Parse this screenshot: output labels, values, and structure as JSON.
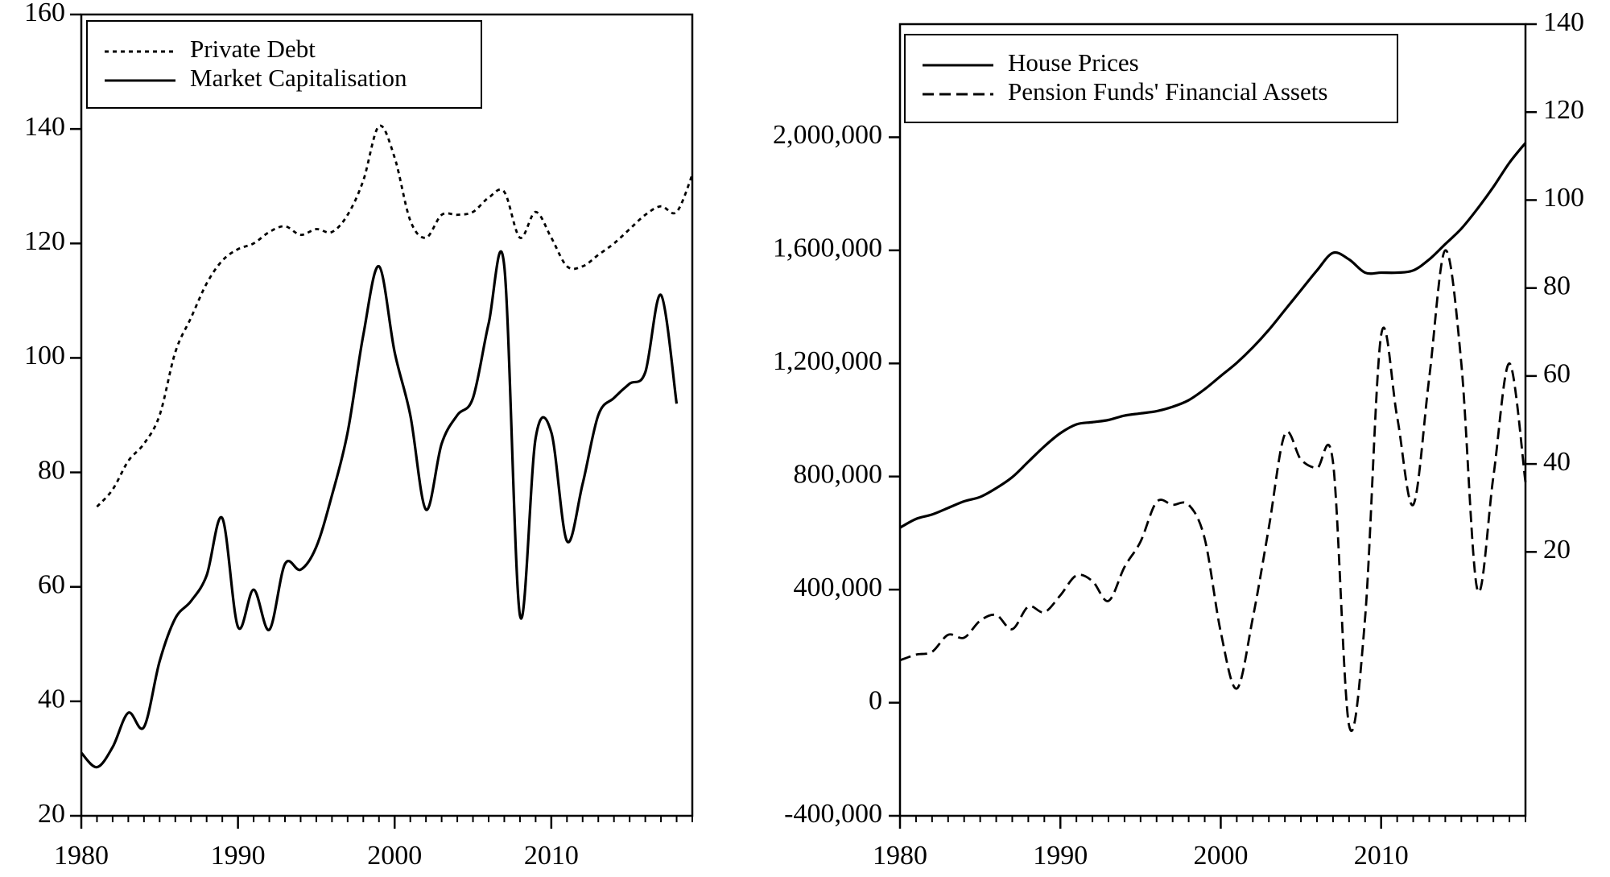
{
  "chart_data": [
    {
      "type": "line",
      "title": "",
      "xlabel": "",
      "ylabel": "",
      "xlim": [
        1980,
        2019
      ],
      "ylim": [
        20,
        160
      ],
      "x_ticks": [
        1980,
        1990,
        2000,
        2010
      ],
      "y_ticks": [
        20,
        40,
        60,
        80,
        100,
        120,
        140,
        160
      ],
      "x_tick_labels": [
        "1980",
        "1990",
        "2000",
        "2010"
      ],
      "y_tick_labels": [
        "20",
        "40",
        "60",
        "80",
        "100",
        "120",
        "140",
        "160"
      ],
      "legend_position": "top-left",
      "grid": false,
      "series": [
        {
          "name": "Private Debt",
          "style": "dotted",
          "x": [
            1981,
            1982,
            1983,
            1984,
            1985,
            1986,
            1987,
            1988,
            1989,
            1990,
            1991,
            1992,
            1993,
            1994,
            1995,
            1996,
            1997,
            1998,
            1999,
            2000,
            2001,
            2002,
            2003,
            2004,
            2005,
            2006,
            2007,
            2008,
            2009,
            2010,
            2011,
            2012,
            2013,
            2014,
            2015,
            2016,
            2017,
            2018,
            2019
          ],
          "values": [
            74,
            77,
            82,
            85,
            90,
            101,
            107,
            113,
            117,
            119,
            120,
            122,
            123,
            121.5,
            122.5,
            122,
            125,
            131,
            140.5,
            135,
            124,
            121,
            125,
            125,
            125.5,
            128,
            129,
            121,
            125.5,
            121,
            116,
            116,
            118,
            120,
            122.5,
            125,
            126.5,
            125.5,
            132
          ]
        },
        {
          "name": "Market Capitalisation",
          "style": "solid",
          "x": [
            1980,
            1981,
            1982,
            1983,
            1984,
            1985,
            1986,
            1987,
            1988,
            1989,
            1990,
            1991,
            1992,
            1993,
            1994,
            1995,
            1996,
            1997,
            1998,
            1999,
            2000,
            2001,
            2002,
            2003,
            2004,
            2005,
            2006,
            2007,
            2008,
            2009,
            2010,
            2011,
            2012,
            2013,
            2014,
            2015,
            2016,
            2017,
            2018
          ],
          "values": [
            31,
            28.5,
            32,
            38,
            35.5,
            47,
            54.5,
            57.5,
            62,
            72,
            53,
            59.5,
            52.5,
            64,
            63,
            67,
            76,
            87,
            104,
            116,
            101,
            90,
            73.5,
            85,
            90,
            93,
            106,
            116,
            55,
            86,
            87,
            68,
            78,
            90,
            93,
            95.5,
            97.5,
            111,
            92
          ]
        }
      ]
    },
    {
      "type": "line",
      "title": "",
      "xlabel": "",
      "ylabel": "",
      "xlim": [
        1980,
        2019
      ],
      "ylim_left": [
        -400000,
        2400000
      ],
      "ylim_right": [
        -40,
        140
      ],
      "x_ticks": [
        1980,
        1990,
        2000,
        2010
      ],
      "x_tick_labels": [
        "1980",
        "1990",
        "2000",
        "2010"
      ],
      "y_ticks_left": [
        -400000,
        0,
        400000,
        800000,
        1200000,
        1600000,
        2000000
      ],
      "y_tick_labels_left": [
        "-400,000",
        "0",
        "400,000",
        "800,000",
        "1,200,000",
        "1,600,000",
        "2,000,000"
      ],
      "y_ticks_right": [
        20,
        40,
        60,
        80,
        100,
        120,
        140
      ],
      "y_tick_labels_right": [
        "20",
        "40",
        "60",
        "80",
        "100",
        "120",
        "140"
      ],
      "legend_position": "top-left",
      "grid": false,
      "series": [
        {
          "name": "House Prices",
          "style": "solid",
          "axis": "right",
          "x": [
            1980,
            1981,
            1982,
            1983,
            1984,
            1985,
            1986,
            1987,
            1988,
            1989,
            1990,
            1991,
            1992,
            1993,
            1994,
            1995,
            1996,
            1997,
            1998,
            1999,
            2000,
            2001,
            2002,
            2003,
            2004,
            2005,
            2006,
            2007,
            2008,
            2009,
            2010,
            2011,
            2012,
            2013,
            2014,
            2015,
            2016,
            2017,
            2018,
            2019
          ],
          "values": [
            25.5,
            27.5,
            28.5,
            30,
            31.5,
            32.5,
            34.5,
            37,
            40.5,
            44,
            47,
            49,
            49.5,
            50,
            51,
            51.5,
            52,
            53,
            54.5,
            57,
            60,
            63,
            66.5,
            70.5,
            75,
            79.5,
            84,
            88,
            86.5,
            83.5,
            83.5,
            83.5,
            84,
            86.5,
            90,
            93.5,
            98,
            103,
            108.5,
            113
          ]
        },
        {
          "name": "Pension Funds' Financial Assets",
          "style": "dashed",
          "axis": "left",
          "x": [
            1980,
            1981,
            1982,
            1983,
            1984,
            1985,
            1986,
            1987,
            1988,
            1989,
            1990,
            1991,
            1992,
            1993,
            1994,
            1995,
            1996,
            1997,
            1998,
            1999,
            2000,
            2001,
            2002,
            2003,
            2004,
            2005,
            2006,
            2007,
            2008,
            2009,
            2010,
            2011,
            2012,
            2013,
            2014,
            2015,
            2016,
            2017,
            2018,
            2019
          ],
          "values": [
            150000,
            170000,
            180000,
            240000,
            230000,
            290000,
            310000,
            260000,
            340000,
            320000,
            380000,
            450000,
            430000,
            360000,
            480000,
            570000,
            710000,
            700000,
            700000,
            580000,
            250000,
            50000,
            300000,
            620000,
            950000,
            860000,
            830000,
            850000,
            -80000,
            300000,
            1300000,
            1010000,
            700000,
            1150000,
            1600000,
            1200000,
            400000,
            800000,
            1200000,
            780000
          ]
        }
      ]
    }
  ]
}
